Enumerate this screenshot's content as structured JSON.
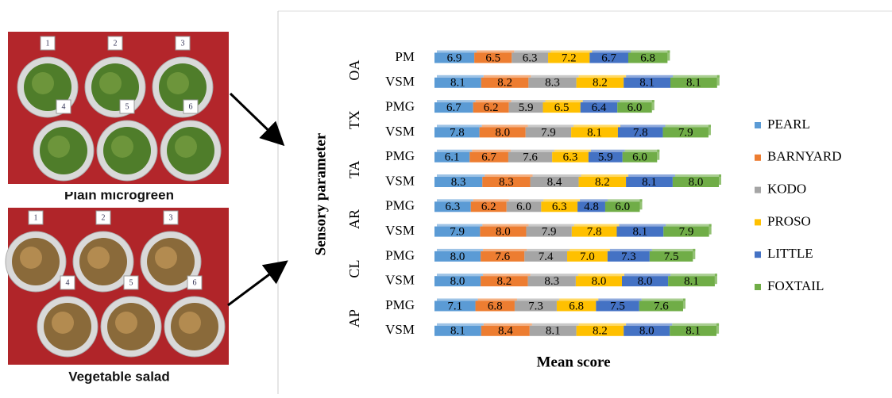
{
  "figure": {
    "photos": [
      {
        "caption": "Plain microgreen"
      },
      {
        "caption": "Vegetable salad"
      }
    ],
    "plate_numbers": [
      "1",
      "2",
      "3",
      "4",
      "5",
      "6"
    ]
  },
  "chart_data": {
    "type": "stacked-bar",
    "orientation": "horizontal",
    "y_label": "Sensory parameter",
    "x_label": "Mean score",
    "groups": [
      "OA",
      "TX",
      "TA",
      "AR",
      "CL",
      "AP"
    ],
    "categories": [
      "PM",
      "VSM",
      "PMG",
      "VSM",
      "PMG",
      "VSM",
      "PMG",
      "VSM",
      "PMG",
      "VSM",
      "PMG",
      "VSM"
    ],
    "legend_position": "right",
    "series": [
      {
        "name": "PEARL",
        "color": "#5b9bd5",
        "values": [
          6.9,
          8.1,
          6.7,
          7.8,
          6.1,
          8.3,
          6.3,
          7.9,
          8.0,
          8.0,
          7.1,
          8.1
        ],
        "value_labels": [
          "6.9",
          "8.1",
          "6.7",
          "7.8",
          "6.1",
          "8.3",
          "6.3",
          "7.9",
          "8.0",
          "8.0",
          "7.1",
          "8.1"
        ]
      },
      {
        "name": "BARNYARD",
        "color": "#ed7d31",
        "values": [
          6.5,
          8.2,
          6.2,
          8.0,
          6.7,
          8.3,
          6.2,
          8.0,
          7.6,
          8.2,
          6.8,
          8.4
        ],
        "value_labels": [
          "6.5",
          "8.2",
          "6.2",
          "8.0",
          "6.7",
          "8.3",
          "6.2",
          "8.0",
          "7.6",
          "8.2",
          "6.8",
          "8.4"
        ]
      },
      {
        "name": "KODO",
        "color": "#a5a5a5",
        "values": [
          6.3,
          8.3,
          5.9,
          7.9,
          7.6,
          8.4,
          6.0,
          7.9,
          7.4,
          8.3,
          7.3,
          8.1
        ],
        "value_labels": [
          "6.3",
          "8.3",
          "5.9",
          "7.9",
          "7.6",
          "8.4",
          "6.0",
          "7.9",
          "7.4",
          "8.3",
          "7.3",
          "8.1"
        ]
      },
      {
        "name": "PROSO",
        "color": "#ffc000",
        "values": [
          7.2,
          8.2,
          6.5,
          8.1,
          6.3,
          8.2,
          6.3,
          7.8,
          7.0,
          8.0,
          6.8,
          8.2
        ],
        "value_labels": [
          "7.2",
          "8.2",
          "6.5",
          "8.1",
          "6.3",
          "8.2",
          "6.3",
          "7.8",
          "7.0",
          "8.0",
          "6.8",
          "8.2"
        ]
      },
      {
        "name": "LITTLE",
        "color": "#4472c4",
        "values": [
          6.7,
          8.1,
          6.4,
          7.8,
          5.9,
          8.1,
          4.8,
          8.1,
          7.3,
          8.0,
          7.5,
          8.0
        ],
        "value_labels": [
          "6.7",
          "8.1",
          "6.4",
          "7.8",
          "5.9",
          "8.1",
          "4.8",
          "8.1",
          "7.3",
          "8.0",
          "7.5",
          "8.0"
        ]
      },
      {
        "name": "FOXTAIL",
        "color": "#70ad47",
        "values": [
          6.8,
          8.1,
          6.0,
          7.9,
          6.0,
          8.0,
          6.0,
          7.9,
          7.5,
          8.1,
          7.6,
          8.1
        ],
        "value_labels": [
          "6.8",
          "8.1",
          "6.0",
          "7.9",
          "6.0",
          "8.0",
          "6.0",
          "7.9",
          "7.5",
          "8.1",
          "7.6",
          "8.1"
        ]
      }
    ]
  }
}
